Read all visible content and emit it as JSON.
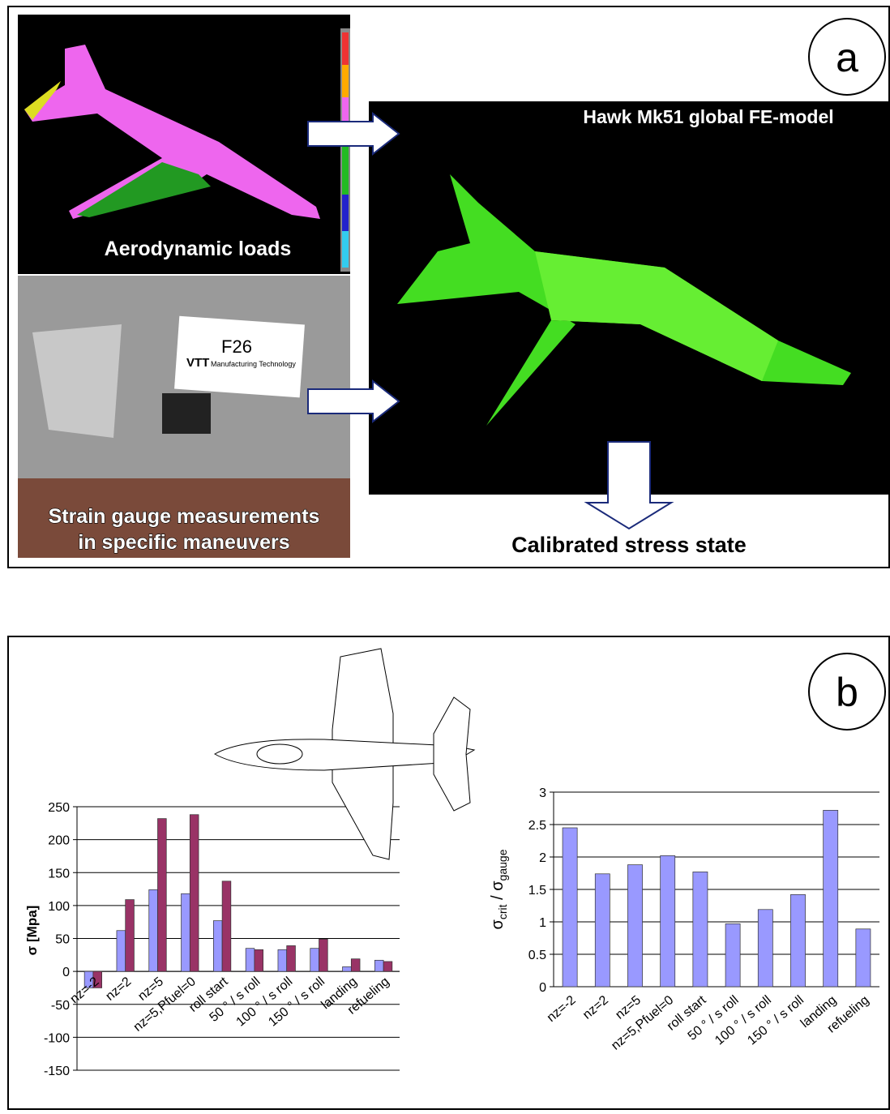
{
  "panel_a": {
    "label": "a",
    "aero_caption": "Aerodynamic loads",
    "strain_caption": [
      "Strain gauge measurements",
      "in specific maneuvers"
    ],
    "fe_title": "Hawk Mk51 global FE-model",
    "result": "Calibrated stress state",
    "tag": {
      "code": "F26",
      "logo": "VTT",
      "org": "Manufacturing Technology"
    }
  },
  "panel_b": {
    "label": "b"
  },
  "chart_data": [
    {
      "type": "bar",
      "ylabel": "σ [Mpa]",
      "categories": [
        "nz=-2",
        "nz=2",
        "nz=5",
        "nz=5,Pfuel=0",
        "roll start",
        "50 ° / s roll",
        "100 ° / s roll",
        "150 ° / s roll",
        "landing",
        "refueling"
      ],
      "series": [
        {
          "color": "#9999ff",
          "values": [
            -25,
            62,
            124,
            118,
            77,
            35,
            33,
            35,
            7,
            17
          ]
        },
        {
          "color": "#993366",
          "values": [
            -25,
            109,
            232,
            238,
            137,
            33,
            39,
            49,
            19,
            15
          ]
        }
      ],
      "ylim": [
        -150,
        250
      ],
      "yticks": [
        -150,
        -100,
        -50,
        0,
        50,
        100,
        150,
        200,
        250
      ],
      "grid": true
    },
    {
      "type": "bar",
      "ylabel": [
        "σ",
        "crit",
        " / σ",
        "gauge"
      ],
      "categories": [
        "nz=-2",
        "nz=2",
        "nz=5",
        "nz=5,Pfuel=0",
        "roll start",
        "50 ° / s roll",
        "100 ° / s roll",
        "150 ° / s roll",
        "landing",
        "refueling"
      ],
      "series": [
        {
          "color": "#9999ff",
          "values": [
            2.45,
            1.74,
            1.88,
            2.02,
            1.77,
            0.97,
            1.19,
            1.42,
            2.72,
            0.89
          ]
        }
      ],
      "ylim": [
        0,
        3
      ],
      "yticks": [
        0,
        0.5,
        1,
        1.5,
        2,
        2.5,
        3
      ],
      "grid": true
    }
  ]
}
